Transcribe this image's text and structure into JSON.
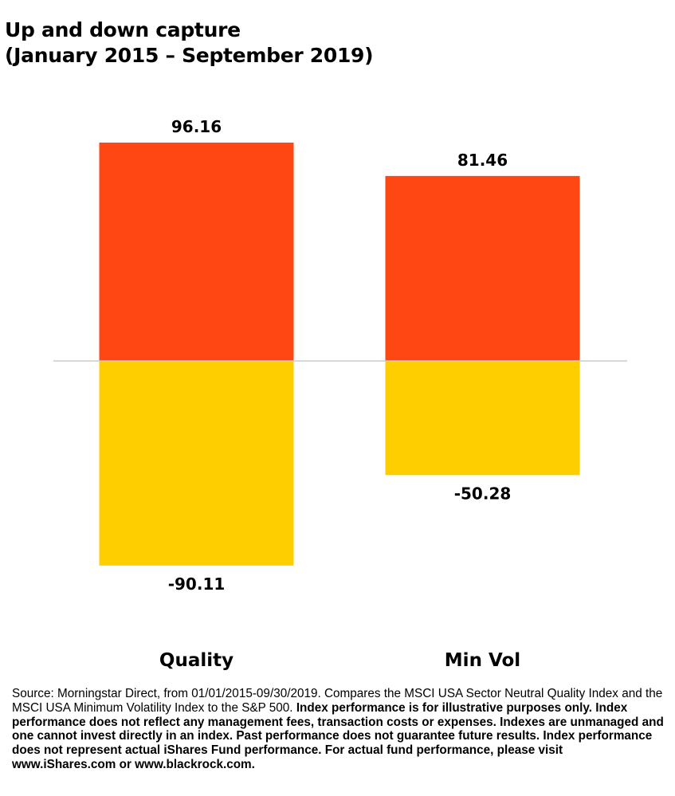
{
  "title": {
    "line1": "Up and down capture",
    "line2": "(January 2015 – September 2019)"
  },
  "chart_data": {
    "type": "bar",
    "categories": [
      "Quality",
      "Min Vol"
    ],
    "series": [
      {
        "values": [
          96.16,
          81.46
        ],
        "labels": [
          "96.16",
          "81.46"
        ],
        "color": "#FF4713"
      },
      {
        "values": [
          -90.11,
          -50.28
        ],
        "labels": [
          "-90.11",
          "-50.28"
        ],
        "color": "#FFCE00"
      }
    ],
    "baseline_color": "#CCCCCC",
    "ylim": [
      -90.11,
      96.16
    ],
    "grid": false,
    "legend": "none"
  },
  "footnote": {
    "plain": "Source: Morningstar Direct, from 01/01/2015-09/30/2019. Compares the MSCI USA Sector Neutral Quality Index and the MSCI USA Minimum Volatility Index to the S&P 500.",
    "bold": "Index performance is for illustrative purposes only.  Index performance does not reflect any management fees, transaction costs or expenses. Indexes are unmanaged and one cannot invest directly in an index. Past performance does not guarantee future results. Index performance does not represent actual iShares Fund performance. For actual fund performance, please visit www.iShares.com or www.blackrock.com."
  }
}
